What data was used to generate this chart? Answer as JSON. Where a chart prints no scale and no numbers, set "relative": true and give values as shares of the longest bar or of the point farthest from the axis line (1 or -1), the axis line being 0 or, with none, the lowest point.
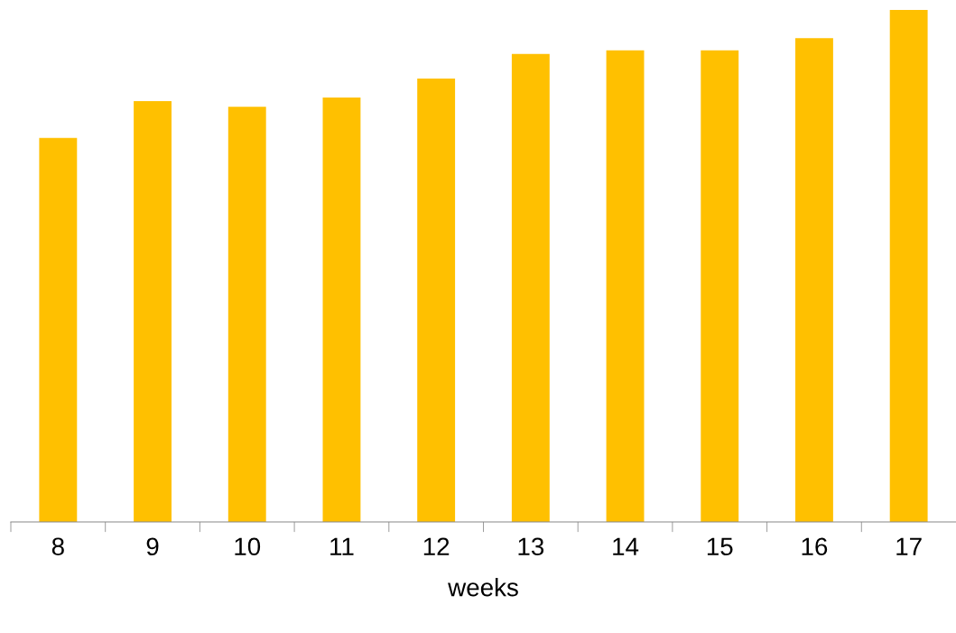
{
  "chart_data": {
    "type": "bar",
    "xlabel": "weeks",
    "relative": true,
    "color": "#ffc000",
    "categories": [
      "8",
      "9",
      "10",
      "11",
      "12",
      "13",
      "14",
      "15",
      "16",
      "17"
    ],
    "values": [
      0.75,
      0.822,
      0.811,
      0.829,
      0.866,
      0.914,
      0.921,
      0.921,
      0.945,
      1.0
    ]
  }
}
